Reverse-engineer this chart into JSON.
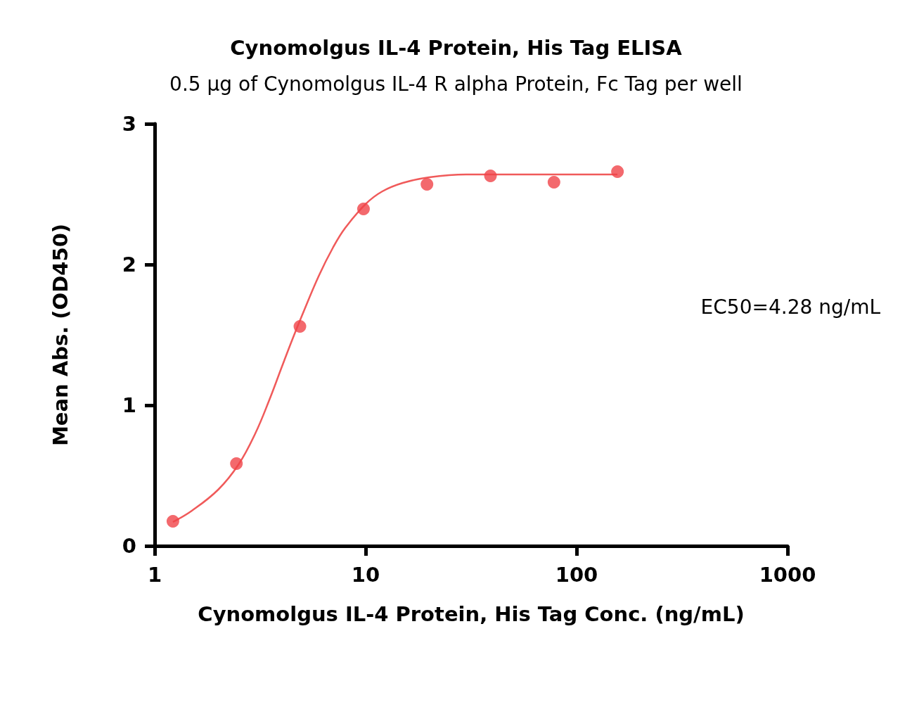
{
  "chart_data": {
    "type": "scatter",
    "title": "Cynomolgus IL-4 Protein, His Tag ELISA",
    "subtitle": "0.5 μg of Cynomolgus IL-4 R alpha Protein, Fc Tag per well",
    "xlabel": "Cynomolgus IL-4 Protein, His Tag Conc. (ng/mL)",
    "ylabel": "Mean Abs. (OD450)",
    "annotations": [
      "EC50=4.28 ng/mL"
    ],
    "series": [
      {
        "color": "#f04448",
        "marker": "circle",
        "x": [
          1.22,
          2.44,
          4.88,
          9.77,
          19.53,
          39.06,
          78.13,
          156.25
        ],
        "values": [
          0.175,
          0.585,
          1.56,
          2.395,
          2.57,
          2.63,
          2.585,
          2.66
        ]
      },
      {
        "type": "line",
        "color": "#f05a5a",
        "marker": "none",
        "line_style": "solid",
        "x": [
          1.22,
          1.5,
          2,
          2.5,
          3,
          3.5,
          4,
          4.5,
          5,
          6,
          7,
          8,
          10,
          12,
          15,
          20,
          30,
          50,
          156.25
        ],
        "values": [
          0.17,
          0.25,
          0.4,
          0.58,
          0.8,
          1.04,
          1.27,
          1.47,
          1.64,
          1.92,
          2.12,
          2.26,
          2.43,
          2.52,
          2.58,
          2.62,
          2.64,
          2.64,
          2.64
        ]
      }
    ],
    "log": "x",
    "xlim": [
      1,
      1000
    ],
    "xticks": [
      1,
      10,
      100,
      1000
    ],
    "ylim": [
      0,
      3
    ],
    "yticks": [
      0,
      1,
      2,
      3
    ],
    "grid": false
  }
}
